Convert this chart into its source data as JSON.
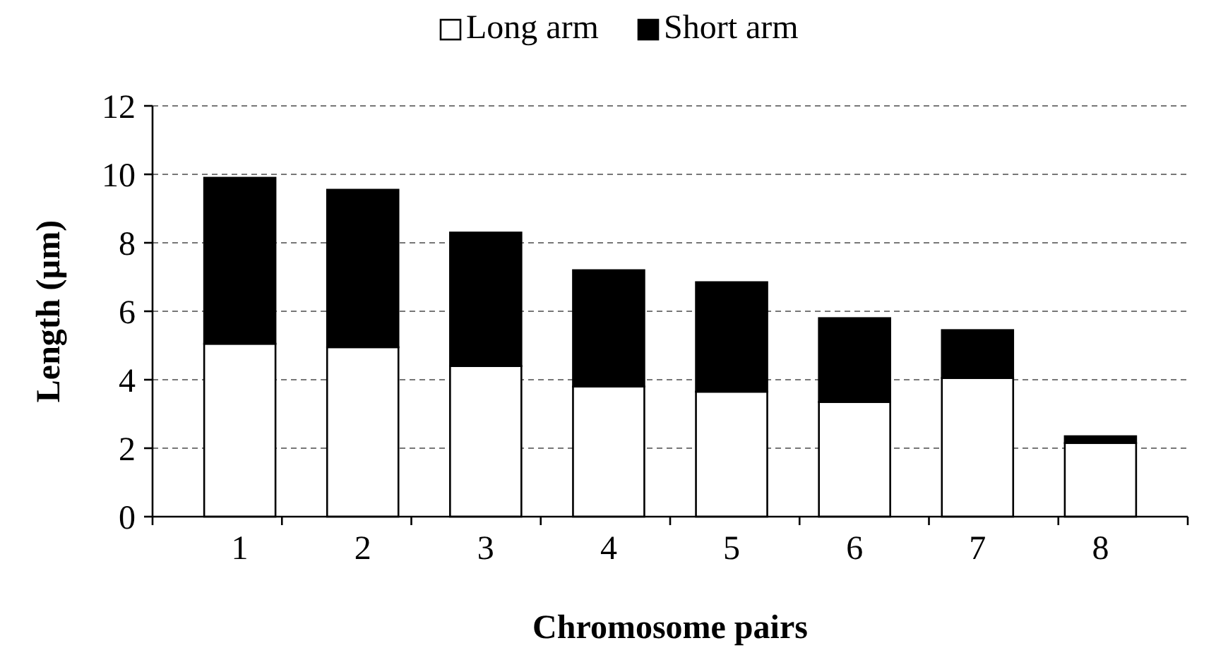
{
  "chart_data": {
    "type": "bar",
    "stacked": true,
    "xlabel": "Chromosome pairs",
    "ylabel": "Length (µm)",
    "categories": [
      "1",
      "2",
      "3",
      "4",
      "5",
      "6",
      "7",
      "8"
    ],
    "series": [
      {
        "name": "Long arm",
        "color": "#ffffff",
        "values": [
          5.05,
          4.95,
          4.4,
          3.8,
          3.65,
          3.35,
          4.05,
          2.15
        ]
      },
      {
        "name": "Short arm",
        "color": "#000000",
        "values": [
          4.85,
          4.6,
          3.9,
          3.4,
          3.2,
          2.45,
          1.4,
          0.2
        ]
      }
    ],
    "ylim": [
      0,
      12
    ],
    "yticks": [
      0,
      2,
      4,
      6,
      8,
      10,
      12
    ],
    "grid": "y",
    "legend": "top"
  }
}
